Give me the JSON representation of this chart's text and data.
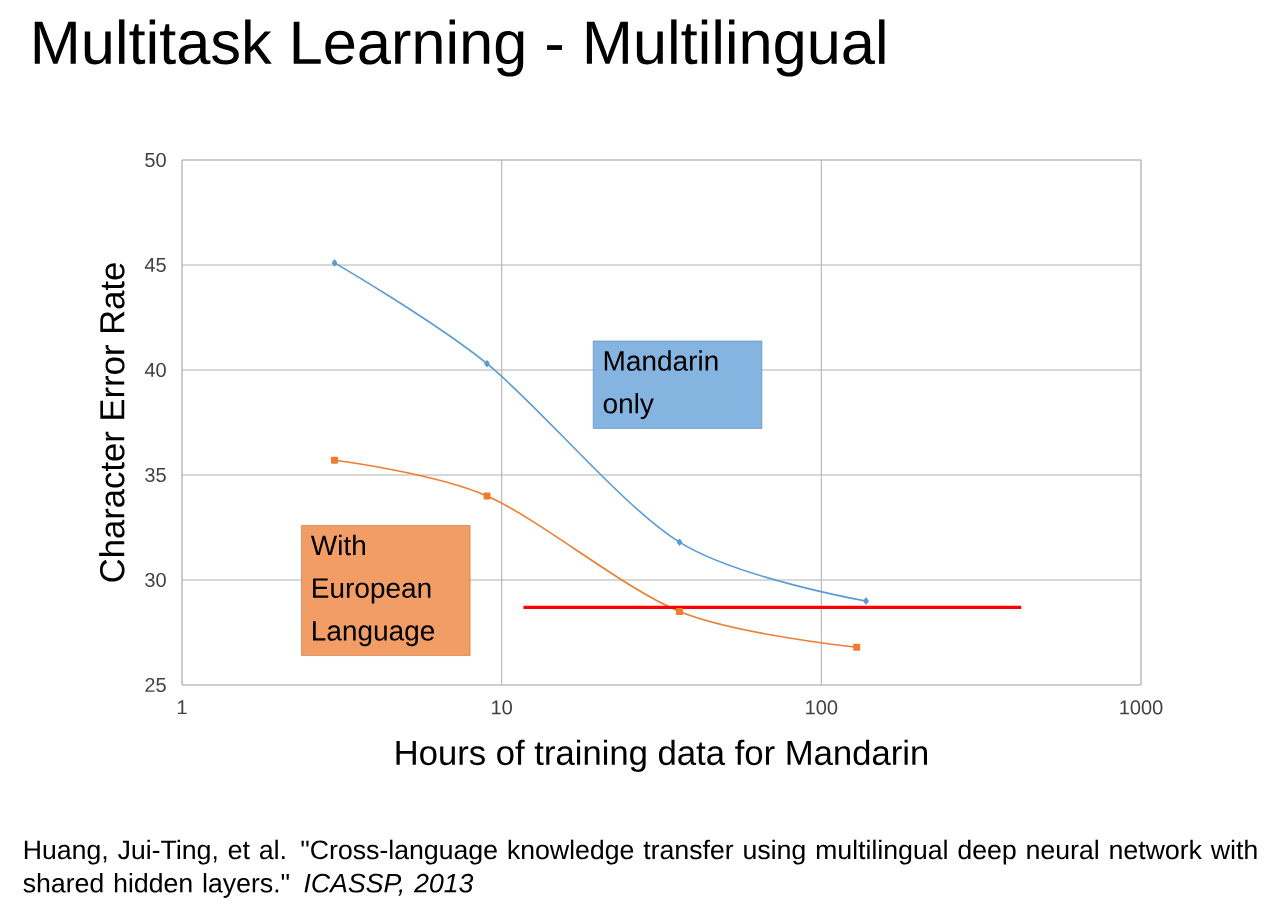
{
  "chart_data": {
    "type": "line",
    "title": "Multitask Learning - Multilingual",
    "xlabel": "Hours of training data for Mandarin",
    "ylabel": "Character Error Rate",
    "log": "x",
    "xlim": [
      1,
      1000
    ],
    "xticks": [
      1,
      10,
      100,
      1000
    ],
    "ylim": [
      25,
      50
    ],
    "yticks": [
      25,
      30,
      35,
      40,
      45,
      50
    ],
    "grid": true,
    "series": [
      {
        "name": "Mandarin only",
        "color": "#5b9bd5",
        "marker": "diamond",
        "x": [
          3,
          9,
          36,
          138
        ],
        "values": [
          45.1,
          40.3,
          31.8,
          29.0
        ]
      },
      {
        "name": "With European Language",
        "color": "#ed7d31",
        "marker": "square",
        "x": [
          3,
          9,
          36,
          129
        ],
        "values": [
          35.7,
          34.0,
          28.5,
          26.8
        ]
      },
      {
        "color": "#ff0000",
        "marker": "none",
        "x": [
          11.7,
          422
        ],
        "values": [
          28.7,
          28.7
        ]
      }
    ],
    "annotations": [
      "Huang, Jui-Ting, et al. \"Cross-language knowledge transfer using multilingual deep neural network with shared hidden layers.\" *ICASSP, 2013*"
    ]
  }
}
